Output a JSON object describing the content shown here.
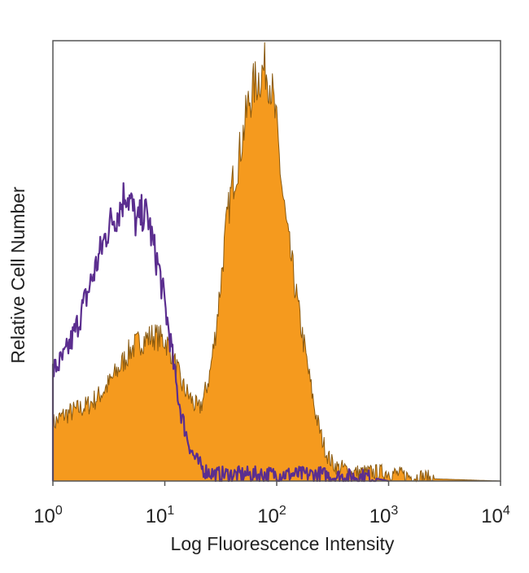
{
  "chart_data": {
    "type": "area",
    "title": "",
    "xlabel": "Log Fluorescence Intensity",
    "ylabel": "Relative Cell Number",
    "x_scale": "log",
    "xlim": [
      1,
      10000
    ],
    "ylim": [
      0,
      1
    ],
    "grid": false,
    "legend": "none",
    "x_ticks": [
      {
        "base": "10",
        "exp": "0",
        "value": 1
      },
      {
        "base": "10",
        "exp": "1",
        "value": 10
      },
      {
        "base": "10",
        "exp": "2",
        "value": 100
      },
      {
        "base": "10",
        "exp": "3",
        "value": 1000
      },
      {
        "base": "10",
        "exp": "4",
        "value": 10000
      }
    ],
    "series": [
      {
        "style": "filled",
        "color": "#F59A1E",
        "edge_color": "#8A5A10",
        "x": [
          1.0,
          1.26,
          1.58,
          2.0,
          2.51,
          3.16,
          3.98,
          5.01,
          6.31,
          7.94,
          10.0,
          11.2,
          12.6,
          14.1,
          15.8,
          17.8,
          20.0,
          22.4,
          25.1,
          28.2,
          31.6,
          35.5,
          39.8,
          44.7,
          50.1,
          56.2,
          63.1,
          70.8,
          79.4,
          89.1,
          100,
          112,
          126,
          141,
          158,
          178,
          200,
          224,
          251,
          282,
          316,
          355,
          398,
          447,
          501,
          562,
          631,
          708,
          794,
          891,
          1000,
          1259,
          1585,
          1995,
          2512,
          10000
        ],
        "y": [
          0.13,
          0.15,
          0.16,
          0.17,
          0.19,
          0.22,
          0.26,
          0.3,
          0.32,
          0.33,
          0.32,
          0.3,
          0.26,
          0.22,
          0.2,
          0.18,
          0.16,
          0.19,
          0.24,
          0.33,
          0.45,
          0.58,
          0.67,
          0.72,
          0.79,
          0.86,
          0.9,
          0.92,
          0.94,
          0.9,
          0.8,
          0.66,
          0.55,
          0.47,
          0.38,
          0.3,
          0.22,
          0.15,
          0.1,
          0.06,
          0.04,
          0.03,
          0.03,
          0.02,
          0.02,
          0.02,
          0.02,
          0.02,
          0.02,
          0.02,
          0.02,
          0.015,
          0.01,
          0.01,
          0.005,
          0.0
        ]
      },
      {
        "style": "outline",
        "color": "#5B2E8F",
        "x": [
          1.0,
          1.26,
          1.58,
          2.0,
          2.51,
          3.16,
          3.98,
          4.47,
          5.01,
          5.62,
          6.31,
          7.08,
          7.94,
          8.91,
          10.0,
          11.2,
          12.6,
          14.1,
          15.8,
          17.8,
          20.0,
          22.4,
          25.1,
          28.2,
          31.6,
          39.8,
          50.1,
          63.1,
          79.4,
          100,
          126,
          158,
          200,
          251,
          316,
          398,
          501,
          631,
          794,
          1000
        ],
        "y": [
          0.25,
          0.28,
          0.34,
          0.42,
          0.5,
          0.58,
          0.62,
          0.66,
          0.63,
          0.58,
          0.61,
          0.6,
          0.53,
          0.48,
          0.4,
          0.32,
          0.22,
          0.15,
          0.1,
          0.06,
          0.04,
          0.025,
          0.02,
          0.015,
          0.015,
          0.015,
          0.015,
          0.015,
          0.015,
          0.015,
          0.015,
          0.015,
          0.015,
          0.015,
          0.01,
          0.01,
          0.01,
          0.01,
          0.005,
          0.0
        ]
      }
    ]
  }
}
